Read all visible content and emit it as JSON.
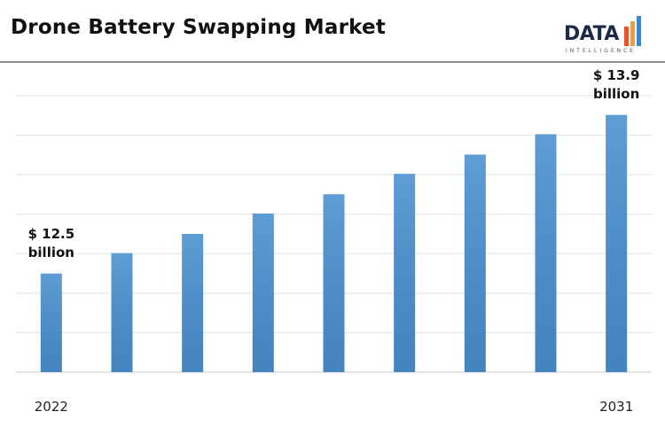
{
  "chart_data": {
    "type": "bar",
    "title": "Drone Battery Swapping Market",
    "categories": [
      "2022",
      null,
      null,
      null,
      null,
      null,
      null,
      null,
      "2031"
    ],
    "values": [
      12.5,
      12.68,
      12.85,
      13.03,
      13.2,
      13.38,
      13.55,
      13.73,
      13.9
    ],
    "value_labels": [
      "$ 12.5 billion",
      null,
      null,
      null,
      null,
      null,
      null,
      null,
      "$ 13.9 billion"
    ],
    "color": "#4a8fd0",
    "ylim": [
      11.63,
      14.07
    ],
    "grid": true
  },
  "logo": {
    "name": "DATA",
    "tagline": "INTELLIGENCE"
  }
}
